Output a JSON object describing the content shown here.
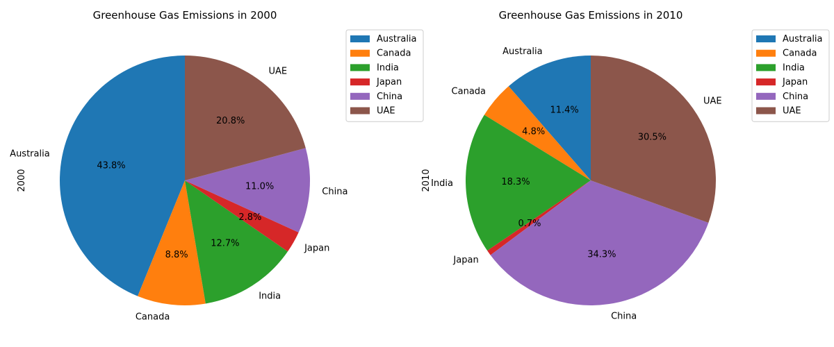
{
  "chart_data": [
    {
      "type": "pie",
      "title": "Greenhouse Gas Emissions in 2000",
      "ylabel": "2000",
      "categories": [
        "Australia",
        "Canada",
        "India",
        "Japan",
        "China",
        "UAE"
      ],
      "values": [
        43.8,
        8.8,
        12.7,
        2.8,
        11.0,
        20.8
      ],
      "value_labels": [
        "43.8%",
        "8.8%",
        "12.7%",
        "2.8%",
        "11.0%",
        "20.8%"
      ],
      "colors": [
        "#1f77b4",
        "#ff7f0e",
        "#2ca02c",
        "#d62728",
        "#9467bd",
        "#8c564b"
      ],
      "start_angle_deg": 90,
      "direction": "counterclockwise",
      "legend": {
        "position": "upper-right-outside",
        "entries": [
          "Australia",
          "Canada",
          "India",
          "Japan",
          "China",
          "UAE"
        ]
      }
    },
    {
      "type": "pie",
      "title": "Greenhouse Gas Emissions in 2010",
      "ylabel": "2010",
      "categories": [
        "Australia",
        "Canada",
        "India",
        "Japan",
        "China",
        "UAE"
      ],
      "values": [
        11.4,
        4.8,
        18.3,
        0.7,
        34.3,
        30.5
      ],
      "value_labels": [
        "11.4%",
        "4.8%",
        "18.3%",
        "0.7%",
        "34.3%",
        "30.5%"
      ],
      "colors": [
        "#1f77b4",
        "#ff7f0e",
        "#2ca02c",
        "#d62728",
        "#9467bd",
        "#8c564b"
      ],
      "start_angle_deg": 90,
      "direction": "counterclockwise",
      "legend": {
        "position": "upper-right-outside",
        "entries": [
          "Australia",
          "Canada",
          "India",
          "Japan",
          "China",
          "UAE"
        ]
      }
    }
  ]
}
